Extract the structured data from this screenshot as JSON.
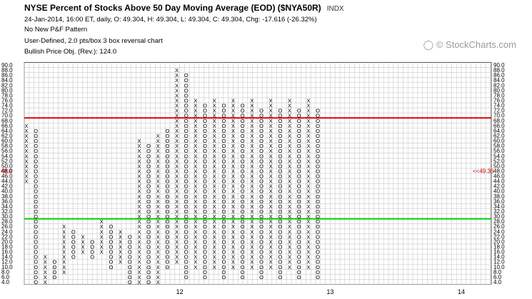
{
  "header": {
    "title": "NYSE Percent of Stocks Above 50 Day Moving Average (EOD) ($NYA50R)",
    "exchange": "INDX",
    "quote_line": "24-Jan-2014, 16:00 ET, daily, O: 49.304, H: 49.304, L: 49.304, C: 49.304, Chg: -17.616 (-26.32%)",
    "pattern_line": "No New P&F Pattern",
    "chart_type_line": "User-Defined, 2.0 pts/box 3 box reversal chart",
    "price_obj_line": "Bullish Price Obj. (Rev.): 124.0"
  },
  "watermark": {
    "text": "© StockCharts.com"
  },
  "chart_data": {
    "type": "point-and-figure",
    "box_size": 2.0,
    "reversal": 3,
    "ylim": [
      4,
      90
    ],
    "y_ticks": [
      4,
      6,
      8,
      10,
      12,
      14,
      16,
      18,
      20,
      22,
      24,
      26,
      28,
      30,
      32,
      34,
      36,
      38,
      40,
      42,
      44,
      46,
      48,
      50,
      52,
      54,
      56,
      58,
      60,
      62,
      64,
      66,
      68,
      70,
      72,
      74,
      76,
      78,
      80,
      82,
      84,
      86,
      88,
      90
    ],
    "x_labels": [
      {
        "text": "12",
        "col": 32
      },
      {
        "text": "13",
        "col": 63
      },
      {
        "text": "14",
        "col": 90
      }
    ],
    "reference_lines": [
      {
        "value": 69,
        "color": "#e00000"
      },
      {
        "value": 29,
        "color": "#00cc00"
      }
    ],
    "last_value_left": "48.0",
    "last_value_right": "<<49.30",
    "columns": [
      {
        "type": "X",
        "low": 44,
        "high": 66
      },
      {
        "type": "O",
        "low": 2,
        "high": 64
      },
      {
        "type": "X",
        "low": 4,
        "high": 14
      },
      {
        "type": "O",
        "low": 6,
        "high": 12
      },
      {
        "type": "X",
        "low": 8,
        "high": 26
      },
      {
        "type": "O",
        "low": 14,
        "high": 24
      },
      {
        "type": "X",
        "low": 16,
        "high": 22
      },
      {
        "type": "O",
        "low": 14,
        "high": 20
      },
      {
        "type": "X",
        "low": 16,
        "high": 28
      },
      {
        "type": "O",
        "low": 10,
        "high": 26
      },
      {
        "type": "X",
        "low": 12,
        "high": 24
      },
      {
        "type": "O",
        "low": 2,
        "high": 22
      },
      {
        "type": "X",
        "low": 4,
        "high": 60
      },
      {
        "type": "O",
        "low": 2,
        "high": 58
      },
      {
        "type": "X",
        "low": 4,
        "high": 62
      },
      {
        "type": "O",
        "low": 10,
        "high": 64
      },
      {
        "type": "X",
        "low": 12,
        "high": 88
      },
      {
        "type": "O",
        "low": 6,
        "high": 86
      },
      {
        "type": "X",
        "low": 10,
        "high": 76
      },
      {
        "type": "O",
        "low": 6,
        "high": 74
      },
      {
        "type": "X",
        "low": 10,
        "high": 76
      },
      {
        "type": "O",
        "low": 6,
        "high": 74
      },
      {
        "type": "X",
        "low": 10,
        "high": 76
      },
      {
        "type": "O",
        "low": 6,
        "high": 74
      },
      {
        "type": "X",
        "low": 10,
        "high": 76
      },
      {
        "type": "O",
        "low": 6,
        "high": 72
      },
      {
        "type": "X",
        "low": 10,
        "high": 76
      },
      {
        "type": "O",
        "low": 6,
        "high": 72
      },
      {
        "type": "X",
        "low": 10,
        "high": 76
      },
      {
        "type": "O",
        "low": 6,
        "high": 72
      },
      {
        "type": "X",
        "low": 10,
        "high": 76
      },
      {
        "type": "O",
        "low": 6,
        "high": 72
      }
    ]
  }
}
